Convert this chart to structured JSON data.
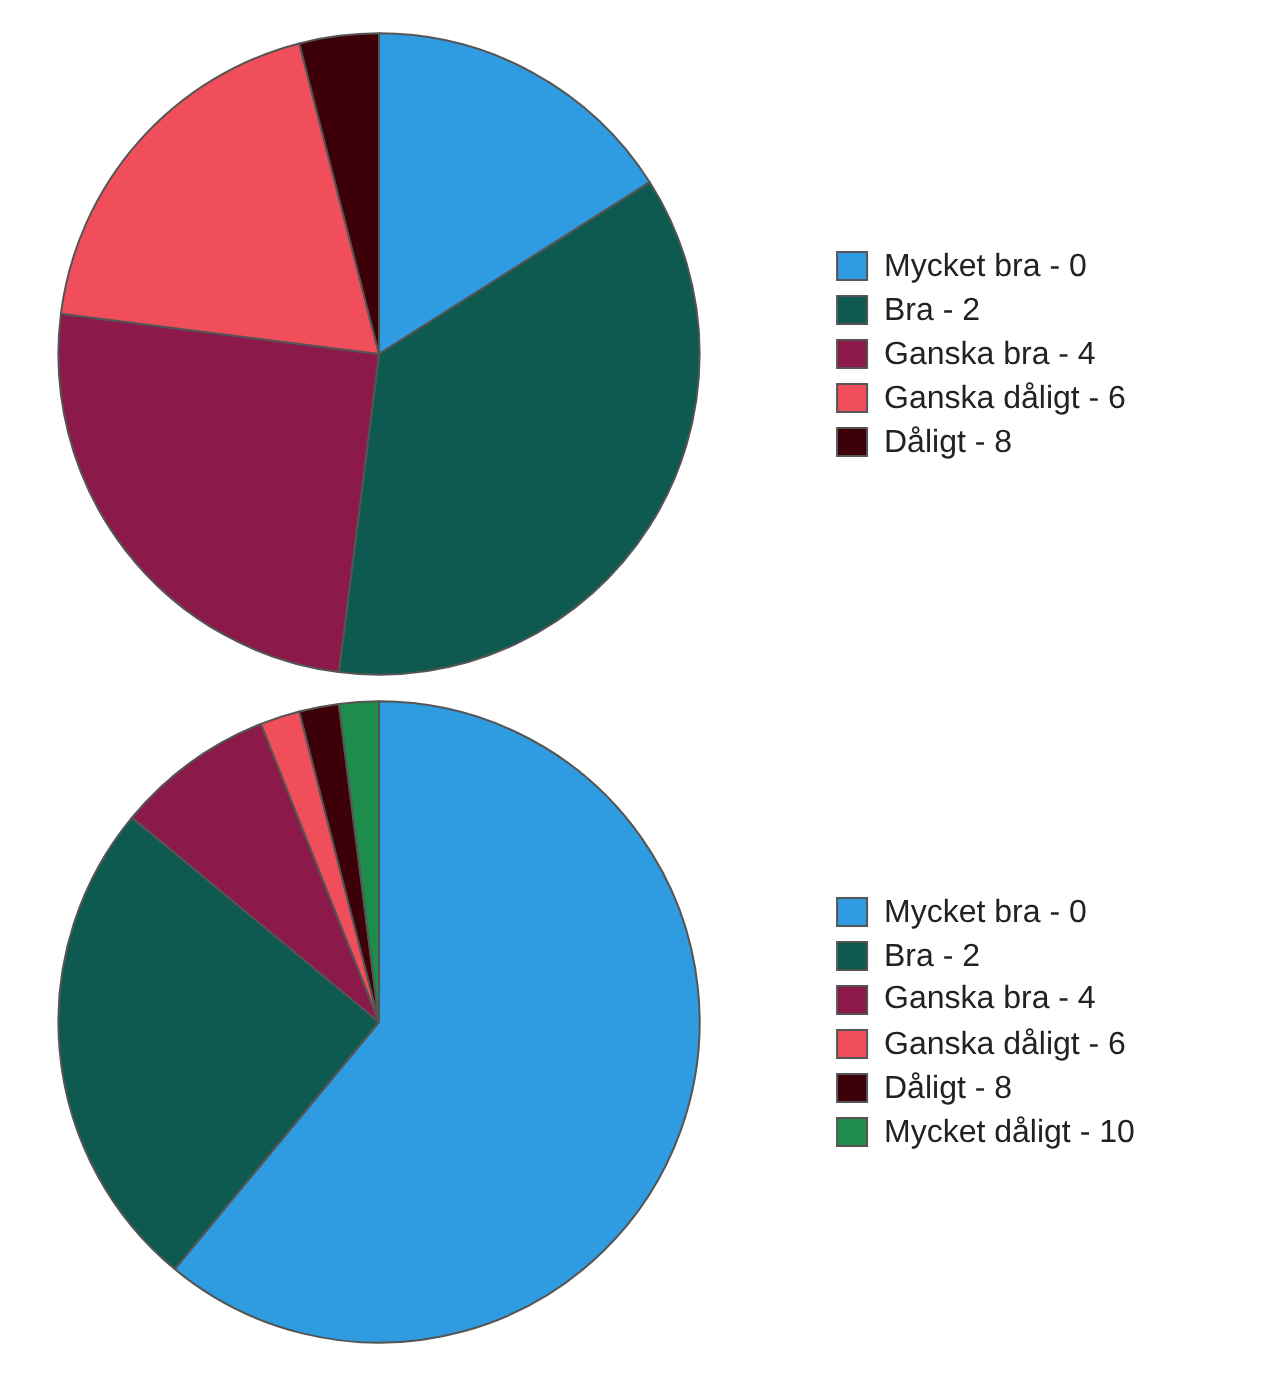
{
  "chart_data": [
    {
      "type": "pie",
      "categories": [
        "Mycket bra - 0",
        "Bra - 2",
        "Ganska bra - 4",
        "Ganska dåligt - 6",
        "Dåligt - 8"
      ],
      "values": [
        16,
        36,
        25,
        19,
        4
      ],
      "colors": [
        "#2f9be0",
        "#0f5a50",
        "#8b1a4a",
        "#f04e5a",
        "#3d0008"
      ],
      "legend": "right"
    },
    {
      "type": "pie",
      "categories": [
        "Mycket bra - 0",
        "Bra - 2",
        "Ganska bra - 4",
        "Ganska dåligt - 6",
        "Dåligt - 8",
        "Mycket dåligt - 10"
      ],
      "values": [
        61,
        25,
        8,
        2,
        2,
        2
      ],
      "colors": [
        "#2f9be0",
        "#0f5a50",
        "#8b1a4a",
        "#f04e5a",
        "#3d0008",
        "#1e8c4a"
      ],
      "legend": "right"
    }
  ]
}
